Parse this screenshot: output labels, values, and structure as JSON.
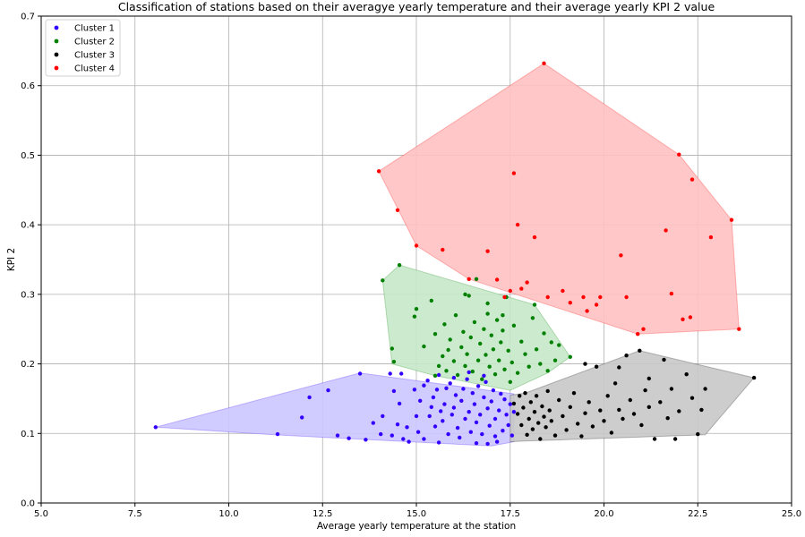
{
  "chart_data": {
    "type": "scatter",
    "title": "Classification of stations based on their averagye yearly temperature and their average yearly KPI 2 value",
    "xlabel": "Average yearly temperature at the station",
    "ylabel": "KPI 2",
    "xlim": [
      5.0,
      25.0
    ],
    "ylim": [
      0.0,
      0.7
    ],
    "xticks": [
      5.0,
      7.5,
      10.0,
      12.5,
      15.0,
      17.5,
      20.0,
      22.5,
      25.0
    ],
    "yticks": [
      0.0,
      0.1,
      0.2,
      0.3,
      0.4,
      0.5,
      0.6,
      0.7
    ],
    "xtick_labels": [
      "5.0",
      "7.5",
      "10.0",
      "12.5",
      "15.0",
      "17.5",
      "20.0",
      "22.5",
      "25.0"
    ],
    "ytick_labels": [
      "0.0",
      "0.1",
      "0.2",
      "0.3",
      "0.4",
      "0.5",
      "0.6",
      "0.7"
    ],
    "grid": true,
    "legend_position": "top-left",
    "series": [
      {
        "name": "Cluster 1",
        "color": "#3300ff",
        "hull_color": "#ccc6ff",
        "hull": [
          [
            8.05,
            0.109
          ],
          [
            13.5,
            0.187
          ],
          [
            17.6,
            0.157
          ],
          [
            17.6,
            0.088
          ],
          [
            17.0,
            0.082
          ],
          [
            11.2,
            0.098
          ]
        ],
        "points": [
          [
            8.05,
            0.109
          ],
          [
            11.3,
            0.099
          ],
          [
            11.95,
            0.123
          ],
          [
            12.15,
            0.152
          ],
          [
            12.65,
            0.162
          ],
          [
            12.9,
            0.097
          ],
          [
            13.2,
            0.093
          ],
          [
            13.5,
            0.186
          ],
          [
            13.65,
            0.091
          ],
          [
            13.85,
            0.115
          ],
          [
            14.05,
            0.099
          ],
          [
            14.1,
            0.125
          ],
          [
            14.3,
            0.186
          ],
          [
            14.35,
            0.097
          ],
          [
            14.4,
            0.161
          ],
          [
            14.5,
            0.113
          ],
          [
            14.55,
            0.143
          ],
          [
            14.6,
            0.186
          ],
          [
            14.65,
            0.092
          ],
          [
            14.75,
            0.109
          ],
          [
            14.8,
            0.088
          ],
          [
            14.95,
            0.163
          ],
          [
            15.0,
            0.125
          ],
          [
            15.05,
            0.102
          ],
          [
            15.1,
            0.147
          ],
          [
            15.2,
            0.092
          ],
          [
            15.3,
            0.176
          ],
          [
            15.35,
            0.125
          ],
          [
            15.4,
            0.138
          ],
          [
            15.45,
            0.152
          ],
          [
            15.5,
            0.11
          ],
          [
            15.55,
            0.163
          ],
          [
            15.6,
            0.087
          ],
          [
            15.65,
            0.132
          ],
          [
            15.7,
            0.118
          ],
          [
            15.75,
            0.142
          ],
          [
            15.8,
            0.165
          ],
          [
            15.85,
            0.099
          ],
          [
            15.9,
            0.172
          ],
          [
            15.95,
            0.127
          ],
          [
            16.0,
            0.137
          ],
          [
            16.05,
            0.155
          ],
          [
            16.1,
            0.108
          ],
          [
            16.15,
            0.094
          ],
          [
            16.2,
            0.147
          ],
          [
            16.25,
            0.164
          ],
          [
            16.3,
            0.121
          ],
          [
            16.35,
            0.178
          ],
          [
            16.4,
            0.131
          ],
          [
            16.45,
            0.102
          ],
          [
            16.5,
            0.158
          ],
          [
            16.55,
            0.142
          ],
          [
            16.6,
            0.116
          ],
          [
            16.65,
            0.168
          ],
          [
            16.7,
            0.127
          ],
          [
            16.75,
            0.099
          ],
          [
            16.8,
            0.152
          ],
          [
            16.85,
            0.174
          ],
          [
            16.9,
            0.136
          ],
          [
            16.95,
            0.111
          ],
          [
            17.0,
            0.146
          ],
          [
            17.05,
            0.162
          ],
          [
            17.1,
            0.121
          ],
          [
            17.15,
            0.088
          ],
          [
            17.2,
            0.133
          ],
          [
            17.25,
            0.157
          ],
          [
            17.3,
            0.104
          ],
          [
            17.35,
            0.149
          ],
          [
            17.4,
            0.127
          ],
          [
            17.45,
            0.112
          ],
          [
            17.5,
            0.142
          ],
          [
            17.55,
            0.097
          ],
          [
            17.6,
            0.131
          ],
          [
            16.6,
            0.086
          ],
          [
            16.9,
            0.085
          ],
          [
            17.1,
            0.096
          ],
          [
            15.2,
            0.169
          ],
          [
            15.6,
            0.184
          ],
          [
            16.0,
            0.18
          ],
          [
            16.4,
            0.188
          ],
          [
            16.8,
            0.183
          ]
        ]
      },
      {
        "name": "Cluster 2",
        "color": "#008000",
        "hull_color": "#c6e8c9",
        "hull": [
          [
            14.1,
            0.32
          ],
          [
            14.55,
            0.342
          ],
          [
            17.4,
            0.297
          ],
          [
            18.15,
            0.285
          ],
          [
            19.1,
            0.21
          ],
          [
            18.5,
            0.187
          ],
          [
            17.5,
            0.162
          ],
          [
            15.5,
            0.183
          ],
          [
            14.35,
            0.2
          ]
        ],
        "points": [
          [
            14.1,
            0.32
          ],
          [
            14.55,
            0.342
          ],
          [
            14.35,
            0.222
          ],
          [
            14.4,
            0.203
          ],
          [
            14.95,
            0.268
          ],
          [
            15.0,
            0.279
          ],
          [
            15.2,
            0.225
          ],
          [
            15.4,
            0.291
          ],
          [
            15.5,
            0.183
          ],
          [
            15.5,
            0.243
          ],
          [
            15.6,
            0.197
          ],
          [
            15.7,
            0.211
          ],
          [
            15.75,
            0.257
          ],
          [
            15.8,
            0.19
          ],
          [
            15.85,
            0.22
          ],
          [
            15.9,
            0.235
          ],
          [
            16.0,
            0.204
          ],
          [
            16.05,
            0.27
          ],
          [
            16.1,
            0.184
          ],
          [
            16.2,
            0.224
          ],
          [
            16.25,
            0.246
          ],
          [
            16.3,
            0.197
          ],
          [
            16.35,
            0.214
          ],
          [
            16.4,
            0.298
          ],
          [
            16.45,
            0.238
          ],
          [
            16.5,
            0.189
          ],
          [
            16.55,
            0.26
          ],
          [
            16.6,
            0.322
          ],
          [
            16.65,
            0.205
          ],
          [
            16.7,
            0.229
          ],
          [
            16.75,
            0.178
          ],
          [
            16.8,
            0.25
          ],
          [
            16.85,
            0.213
          ],
          [
            16.9,
            0.272
          ],
          [
            16.95,
            0.196
          ],
          [
            17.0,
            0.241
          ],
          [
            17.05,
            0.221
          ],
          [
            17.1,
            0.185
          ],
          [
            17.15,
            0.263
          ],
          [
            17.2,
            0.205
          ],
          [
            17.25,
            0.231
          ],
          [
            17.3,
            0.248
          ],
          [
            17.35,
            0.192
          ],
          [
            17.4,
            0.296
          ],
          [
            17.45,
            0.219
          ],
          [
            17.5,
            0.174
          ],
          [
            17.55,
            0.202
          ],
          [
            17.6,
            0.255
          ],
          [
            17.7,
            0.187
          ],
          [
            17.8,
            0.232
          ],
          [
            17.9,
            0.214
          ],
          [
            18.0,
            0.196
          ],
          [
            18.1,
            0.266
          ],
          [
            18.15,
            0.285
          ],
          [
            18.2,
            0.221
          ],
          [
            18.3,
            0.2
          ],
          [
            18.4,
            0.244
          ],
          [
            18.5,
            0.19
          ],
          [
            18.6,
            0.231
          ],
          [
            18.7,
            0.205
          ],
          [
            18.8,
            0.227
          ],
          [
            19.1,
            0.21
          ],
          [
            16.3,
            0.3
          ],
          [
            16.9,
            0.287
          ],
          [
            17.3,
            0.27
          ]
        ]
      },
      {
        "name": "Cluster 3",
        "color": "#000000",
        "hull_color": "#c8c8c8",
        "hull": [
          [
            17.5,
            0.155
          ],
          [
            17.9,
            0.158
          ],
          [
            20.95,
            0.219
          ],
          [
            24.0,
            0.18
          ],
          [
            22.7,
            0.098
          ],
          [
            17.9,
            0.089
          ],
          [
            17.5,
            0.088
          ]
        ],
        "points": [
          [
            17.6,
            0.143
          ],
          [
            17.7,
            0.128
          ],
          [
            17.75,
            0.154
          ],
          [
            17.8,
            0.112
          ],
          [
            17.85,
            0.137
          ],
          [
            17.9,
            0.158
          ],
          [
            17.95,
            0.098
          ],
          [
            18.0,
            0.121
          ],
          [
            18.05,
            0.145
          ],
          [
            18.1,
            0.106
          ],
          [
            18.15,
            0.131
          ],
          [
            18.2,
            0.154
          ],
          [
            18.25,
            0.115
          ],
          [
            18.3,
            0.092
          ],
          [
            18.35,
            0.139
          ],
          [
            18.4,
            0.124
          ],
          [
            18.45,
            0.109
          ],
          [
            18.5,
            0.161
          ],
          [
            18.55,
            0.133
          ],
          [
            18.6,
            0.118
          ],
          [
            18.7,
            0.097
          ],
          [
            18.8,
            0.148
          ],
          [
            18.9,
            0.125
          ],
          [
            19.0,
            0.105
          ],
          [
            19.1,
            0.138
          ],
          [
            19.2,
            0.158
          ],
          [
            19.3,
            0.114
          ],
          [
            19.4,
            0.096
          ],
          [
            19.5,
            0.129
          ],
          [
            19.6,
            0.145
          ],
          [
            19.7,
            0.11
          ],
          [
            19.8,
            0.196
          ],
          [
            19.9,
            0.133
          ],
          [
            20.0,
            0.118
          ],
          [
            20.1,
            0.154
          ],
          [
            20.2,
            0.101
          ],
          [
            20.3,
            0.172
          ],
          [
            20.4,
            0.134
          ],
          [
            20.5,
            0.121
          ],
          [
            20.6,
            0.212
          ],
          [
            20.7,
            0.148
          ],
          [
            20.8,
            0.128
          ],
          [
            20.95,
            0.219
          ],
          [
            21.0,
            0.112
          ],
          [
            21.1,
            0.162
          ],
          [
            21.2,
            0.138
          ],
          [
            21.35,
            0.092
          ],
          [
            21.5,
            0.145
          ],
          [
            21.6,
            0.206
          ],
          [
            21.7,
            0.122
          ],
          [
            21.8,
            0.164
          ],
          [
            21.9,
            0.092
          ],
          [
            22.0,
            0.132
          ],
          [
            22.2,
            0.185
          ],
          [
            22.35,
            0.151
          ],
          [
            22.5,
            0.099
          ],
          [
            22.6,
            0.134
          ],
          [
            22.7,
            0.164
          ],
          [
            24.0,
            0.18
          ],
          [
            19.5,
            0.2
          ],
          [
            20.4,
            0.195
          ],
          [
            21.2,
            0.179
          ]
        ]
      },
      {
        "name": "Cluster 4",
        "color": "#ff0000",
        "hull_color": "#ffc1c1",
        "hull": [
          [
            14.0,
            0.477
          ],
          [
            18.4,
            0.632
          ],
          [
            22.0,
            0.501
          ],
          [
            23.4,
            0.407
          ],
          [
            23.6,
            0.25
          ],
          [
            20.9,
            0.243
          ],
          [
            16.4,
            0.322
          ],
          [
            15.0,
            0.37
          ]
        ],
        "points": [
          [
            14.0,
            0.477
          ],
          [
            14.5,
            0.421
          ],
          [
            15.0,
            0.37
          ],
          [
            15.7,
            0.364
          ],
          [
            16.4,
            0.322
          ],
          [
            16.9,
            0.362
          ],
          [
            17.15,
            0.321
          ],
          [
            17.35,
            0.296
          ],
          [
            17.5,
            0.305
          ],
          [
            17.6,
            0.474
          ],
          [
            17.7,
            0.4
          ],
          [
            17.8,
            0.308
          ],
          [
            17.95,
            0.317
          ],
          [
            18.15,
            0.382
          ],
          [
            18.4,
            0.632
          ],
          [
            18.5,
            0.296
          ],
          [
            18.9,
            0.305
          ],
          [
            19.1,
            0.288
          ],
          [
            19.45,
            0.296
          ],
          [
            19.55,
            0.276
          ],
          [
            19.8,
            0.285
          ],
          [
            19.9,
            0.296
          ],
          [
            20.45,
            0.356
          ],
          [
            20.6,
            0.296
          ],
          [
            20.9,
            0.243
          ],
          [
            21.05,
            0.25
          ],
          [
            21.65,
            0.392
          ],
          [
            21.8,
            0.301
          ],
          [
            22.0,
            0.501
          ],
          [
            22.1,
            0.264
          ],
          [
            22.3,
            0.267
          ],
          [
            22.35,
            0.465
          ],
          [
            22.85,
            0.382
          ],
          [
            23.4,
            0.407
          ],
          [
            23.6,
            0.25
          ]
        ]
      }
    ]
  }
}
